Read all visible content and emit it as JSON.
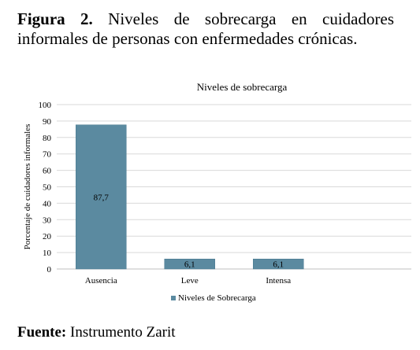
{
  "caption": {
    "label": "Figura 2",
    "separator": ".",
    "text": "Niveles de sobrecarga en cuidadores informales de personas con enfermedades crónicas."
  },
  "source": {
    "label": "Fuente:",
    "text": "Instrumento Zarit"
  },
  "colors": {
    "bar": "#5b8aa0",
    "bar_stroke": "#4a7a90",
    "grid": "#d9d9d9",
    "axis": "#bfbfbf"
  },
  "chart_data": {
    "type": "bar",
    "title": "Niveles de sobrecarga",
    "xlabel": "",
    "ylabel": "Porcentaje de cuidadores informales",
    "categories": [
      "Ausencia",
      "Leve",
      "Intensa"
    ],
    "series": [
      {
        "name": "Niveles de Sobrecarga",
        "values": [
          87.7,
          6.1,
          6.1
        ],
        "labels": [
          "87,7",
          "6,1",
          "6,1"
        ]
      }
    ],
    "ylim": [
      0,
      100
    ],
    "yticks": [
      0,
      10,
      20,
      30,
      40,
      50,
      60,
      70,
      80,
      90,
      100
    ],
    "grid": true,
    "legend": "bottom"
  }
}
